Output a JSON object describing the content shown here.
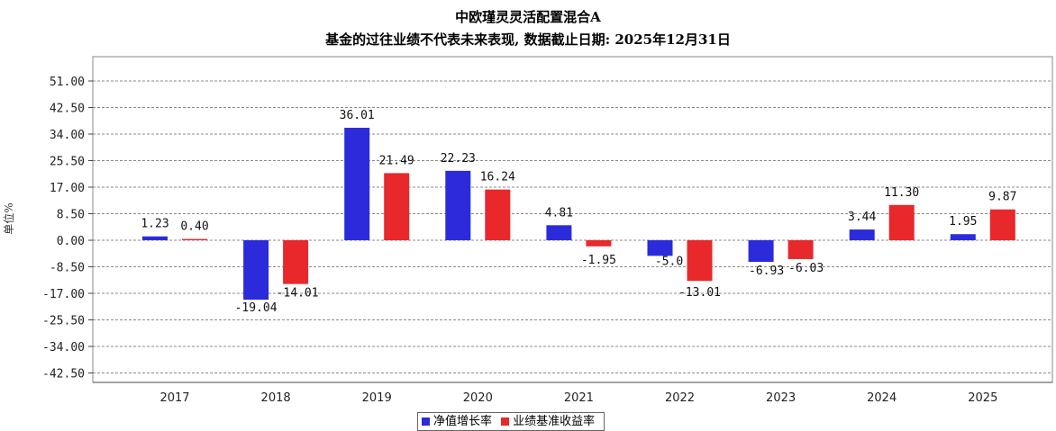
{
  "header": {
    "title": "中欧瑾灵灵活配置混合A",
    "subtitle": "基金的过往业绩不代表未来表现, 数据截止日期: 2025年12月31日"
  },
  "chart_data": {
    "type": "bar",
    "ylabel": "单位%",
    "yticks": [
      "51.00",
      "42.50",
      "34.00",
      "25.50",
      "17.00",
      "8.50",
      "0.00",
      "-8.50",
      "-17.00",
      "-25.50",
      "-34.00",
      "-42.50"
    ],
    "ylim": [
      -45,
      55
    ],
    "grid": true,
    "legend_position": "bottom-center",
    "categories": [
      "2017",
      "2018",
      "2019",
      "2020",
      "2021",
      "2022",
      "2023",
      "2024",
      "2025"
    ],
    "series": [
      {
        "name": "净值增长率",
        "color": "#2b2bdb",
        "values": [
          1.23,
          -19.04,
          36.01,
          22.23,
          4.81,
          -5.0,
          -6.93,
          3.44,
          1.95
        ],
        "labels": [
          "1.23",
          "-19.04",
          "36.01",
          "22.23",
          "4.81",
          "-5.0",
          "-6.93",
          "3.44",
          "1.95"
        ]
      },
      {
        "name": "业绩基准收益率",
        "color": "#e8282b",
        "values": [
          0.4,
          -14.01,
          21.49,
          16.24,
          -1.95,
          -13.01,
          -6.03,
          11.3,
          9.87
        ],
        "labels": [
          "0.40",
          "-14.01",
          "21.49",
          "16.24",
          "-1.95",
          "-13.01",
          "-6.03",
          "11.30",
          "9.87"
        ]
      }
    ]
  }
}
